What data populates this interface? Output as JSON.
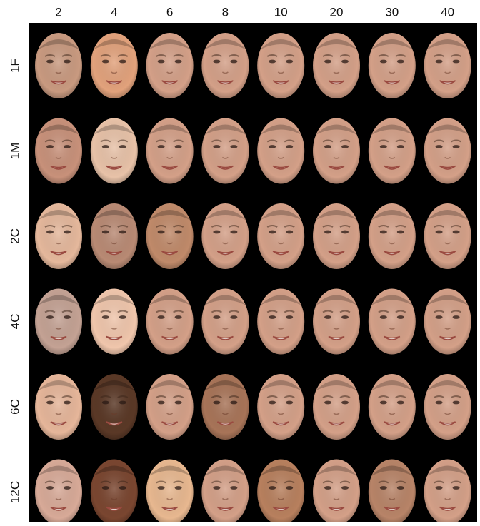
{
  "columns": [
    "2",
    "4",
    "6",
    "8",
    "10",
    "20",
    "30",
    "40"
  ],
  "rows": [
    "1F",
    "1M",
    "2C",
    "4C",
    "6C",
    "12C"
  ]
}
